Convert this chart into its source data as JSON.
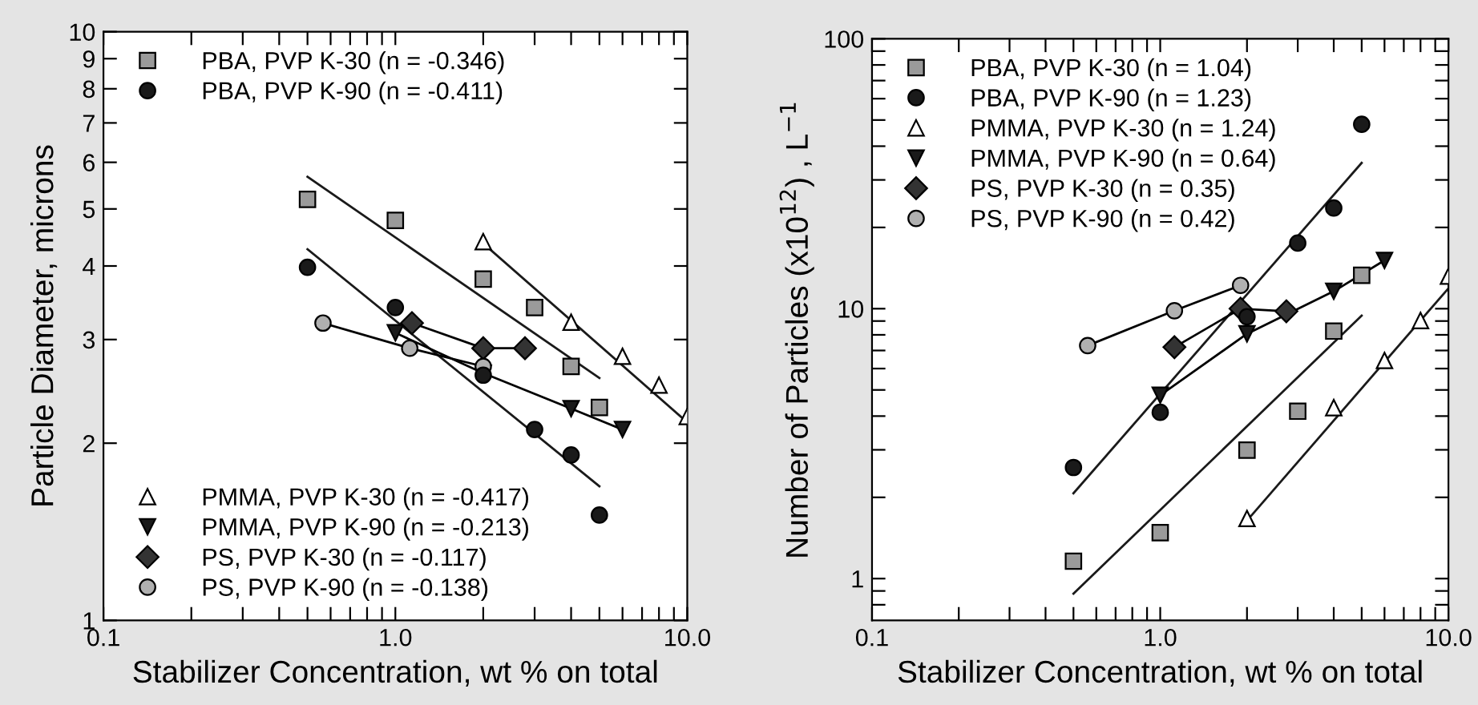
{
  "chart_data": [
    {
      "type": "scatter",
      "xlabel": "Stabilizer Concentration, wt % on total",
      "ylabel": "Particle Diameter, microns",
      "log": "xy",
      "xlim": [
        0.1,
        10
      ],
      "ylim": [
        1,
        10
      ],
      "xticks": [
        0.1,
        {
          "value": 0.2,
          "label": null
        },
        {
          "value": 0.3,
          "label": null
        },
        {
          "value": 0.4,
          "label": null
        },
        {
          "value": 0.5,
          "label": null
        },
        {
          "value": 0.6,
          "label": null
        },
        {
          "value": 0.7,
          "label": null
        },
        {
          "value": 0.8,
          "label": null
        },
        {
          "value": 0.9,
          "label": null
        },
        {
          "value": 1,
          "label": "1.0"
        },
        {
          "value": 2,
          "label": null
        },
        {
          "value": 3,
          "label": null
        },
        {
          "value": 4,
          "label": null
        },
        {
          "value": 5,
          "label": null
        },
        {
          "value": 6,
          "label": null
        },
        {
          "value": 7,
          "label": null
        },
        {
          "value": 8,
          "label": null
        },
        {
          "value": 9,
          "label": null
        },
        {
          "value": 10,
          "label": "10.0"
        }
      ],
      "yticks": [
        1,
        2,
        3,
        4,
        5,
        6,
        7,
        8,
        9,
        10
      ],
      "grid": false,
      "legend": "left",
      "series": [
        {
          "name": "PBA, PVP K-30 (n = -0.346)",
          "marker": "square",
          "color": "#9a9a9a",
          "x": [
            0.5,
            1,
            2,
            3,
            4,
            5
          ],
          "values": [
            5.19,
            4.78,
            3.8,
            3.4,
            2.7,
            2.3
          ]
        },
        {
          "name": "PBA, PVP K-90 (n = -0.411)",
          "marker": "circle",
          "color": "#1a1a1a",
          "x": [
            0.5,
            1,
            2,
            3,
            4,
            5
          ],
          "values": [
            3.98,
            3.4,
            2.61,
            2.11,
            1.91,
            1.51
          ]
        },
        {
          "name": "PMMA, PVP K-30 (n = -0.417)",
          "marker": "triangle",
          "color": "#ffffff",
          "x": [
            2,
            4,
            6,
            8,
            10
          ],
          "values": [
            4.4,
            3.21,
            2.81,
            2.51,
            2.22
          ]
        },
        {
          "name": "PMMA, PVP K-90 (n = -0.213)",
          "type": "line",
          "marker": "triangle_down",
          "color": "#1a1a1a",
          "x": [
            1,
            2,
            4,
            6
          ],
          "values": [
            3.08,
            2.63,
            2.29,
            2.11
          ]
        },
        {
          "name": "PS, PVP K-30 (n = -0.117)",
          "type": "line",
          "marker": "diamond",
          "color": "#333333",
          "x": [
            1.14,
            2,
            2.78
          ],
          "values": [
            3.2,
            2.9,
            2.9
          ]
        },
        {
          "name": "PS, PVP K-90 (n = -0.138)",
          "type": "line",
          "marker": "circle",
          "color": "#b0b0b0",
          "x": [
            0.565,
            1.12,
            2
          ],
          "values": [
            3.2,
            2.9,
            2.7
          ]
        },
        {
          "type": "line",
          "marker": "none",
          "color": "#1a1a1a",
          "x": [
            0.5,
            5
          ],
          "values": [
            5.67,
            2.58
          ]
        },
        {
          "type": "line",
          "marker": "none",
          "color": "#1a1a1a",
          "x": [
            0.5,
            5
          ],
          "values": [
            4.27,
            1.69
          ]
        },
        {
          "type": "line",
          "marker": "none",
          "color": "#1a1a1a",
          "x": [
            2,
            10
          ],
          "values": [
            4.37,
            2.17
          ]
        }
      ]
    },
    {
      "type": "scatter",
      "xlabel": "Stabilizer Concentration, wt % on total",
      "ylabel": "Number of Particles (x10$^{12}$) , L$^{−1}$",
      "log": "xy",
      "xlim": [
        0.1,
        10
      ],
      "ylim": [
        0.7,
        100
      ],
      "xticks": [
        0.1,
        {
          "value": 0.2,
          "label": null
        },
        {
          "value": 0.3,
          "label": null
        },
        {
          "value": 0.4,
          "label": null
        },
        {
          "value": 0.5,
          "label": null
        },
        {
          "value": 0.6,
          "label": null
        },
        {
          "value": 0.7,
          "label": null
        },
        {
          "value": 0.8,
          "label": null
        },
        {
          "value": 0.9,
          "label": null
        },
        {
          "value": 1,
          "label": "1.0"
        },
        {
          "value": 2,
          "label": null
        },
        {
          "value": 3,
          "label": null
        },
        {
          "value": 4,
          "label": null
        },
        {
          "value": 5,
          "label": null
        },
        {
          "value": 6,
          "label": null
        },
        {
          "value": 7,
          "label": null
        },
        {
          "value": 8,
          "label": null
        },
        {
          "value": 9,
          "label": null
        },
        {
          "value": 10,
          "label": "10.0"
        }
      ],
      "yticks": [
        {
          "value": 0.8,
          "label": null
        },
        {
          "value": 0.9,
          "label": null
        },
        1,
        {
          "value": 2,
          "label": null
        },
        {
          "value": 3,
          "label": null
        },
        {
          "value": 4,
          "label": null
        },
        {
          "value": 5,
          "label": null
        },
        {
          "value": 6,
          "label": null
        },
        {
          "value": 7,
          "label": null
        },
        {
          "value": 8,
          "label": null
        },
        {
          "value": 9,
          "label": null
        },
        10,
        {
          "value": 20,
          "label": null
        },
        {
          "value": 30,
          "label": null
        },
        {
          "value": 40,
          "label": null
        },
        {
          "value": 50,
          "label": null
        },
        {
          "value": 60,
          "label": null
        },
        {
          "value": 70,
          "label": null
        },
        {
          "value": 80,
          "label": null
        },
        {
          "value": 90,
          "label": null
        },
        100
      ],
      "grid": false,
      "legend": "top left",
      "series": [
        {
          "name": "PBA, PVP K-30 (n = 1.04)",
          "marker": "square",
          "color": "#9a9a9a",
          "x": [
            0.5,
            1,
            2,
            3,
            4,
            5
          ],
          "values": [
            1.16,
            1.48,
            2.99,
            4.17,
            8.26,
            13.3
          ]
        },
        {
          "name": "PBA, PVP K-90 (n = 1.23)",
          "marker": "circle",
          "color": "#1a1a1a",
          "x": [
            0.5,
            1,
            2,
            3,
            4,
            5
          ],
          "values": [
            2.58,
            4.13,
            9.34,
            17.5,
            23.6,
            48.2
          ]
        },
        {
          "name": "PMMA, PVP K-30 (n = 1.24)",
          "marker": "triangle",
          "color": "#ffffff",
          "x": [
            2,
            4,
            6,
            8,
            10
          ],
          "values": [
            1.67,
            4.3,
            6.43,
            9.04,
            13.2
          ]
        },
        {
          "name": "PMMA, PVP K-90 (n = 0.64)",
          "type": "line",
          "marker": "triangle_down",
          "color": "#1a1a1a",
          "x": [
            1,
            2,
            4,
            6
          ],
          "values": [
            4.78,
            8.07,
            11.6,
            15.1
          ]
        },
        {
          "name": "PS, PVP K-30 (n = 0.35)",
          "type": "line",
          "marker": "diamond",
          "color": "#333333",
          "x": [
            1.12,
            1.9,
            2.74
          ],
          "values": [
            7.2,
            10,
            9.78
          ]
        },
        {
          "name": "PS, PVP K-90 (n = 0.42)",
          "type": "line",
          "marker": "circle",
          "color": "#b0b0b0",
          "x": [
            0.56,
            1.12,
            1.9
          ],
          "values": [
            7.3,
            9.83,
            12.2
          ]
        },
        {
          "type": "line",
          "marker": "none",
          "color": "#1a1a1a",
          "x": [
            0.5,
            5
          ],
          "values": [
            0.88,
            9.42
          ]
        },
        {
          "type": "line",
          "marker": "none",
          "color": "#1a1a1a",
          "x": [
            0.5,
            5
          ],
          "values": [
            2.07,
            34.7
          ]
        },
        {
          "type": "line",
          "marker": "none",
          "color": "#1a1a1a",
          "x": [
            2,
            10
          ],
          "values": [
            1.64,
            11.9
          ]
        }
      ]
    }
  ]
}
